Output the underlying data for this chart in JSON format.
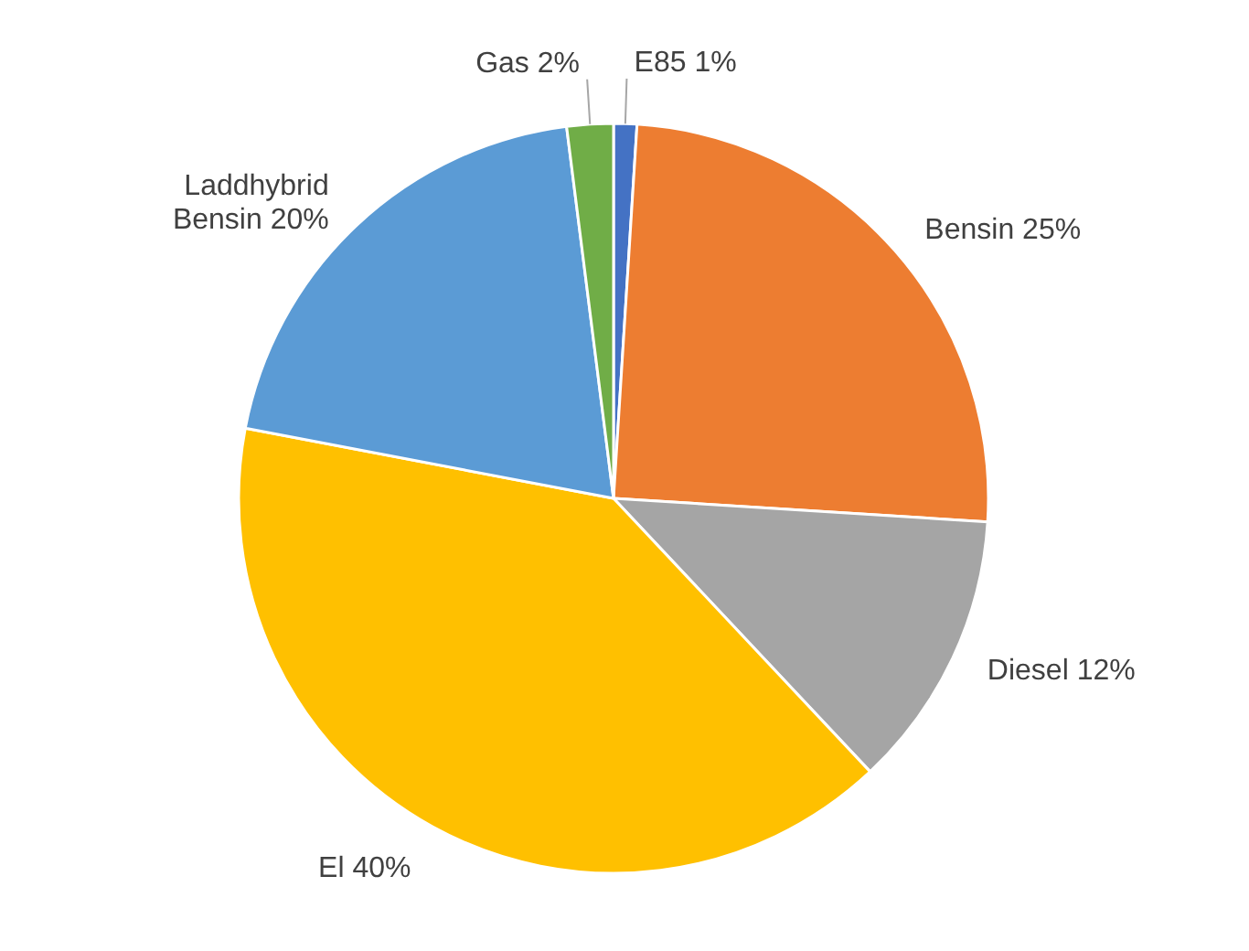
{
  "chart_data": {
    "type": "pie",
    "categories": [
      "E85",
      "Bensin",
      "Diesel",
      "El",
      "Laddhybrid Bensin",
      "Gas"
    ],
    "values": [
      1,
      25,
      12,
      40,
      20,
      2
    ],
    "colors": [
      "#4472c4",
      "#ed7d31",
      "#a5a5a5",
      "#ffc000",
      "#5b9bd5",
      "#70ad47"
    ],
    "value_labels": [
      "1%",
      "25%",
      "12%",
      "40%",
      "20%",
      "2%"
    ]
  }
}
